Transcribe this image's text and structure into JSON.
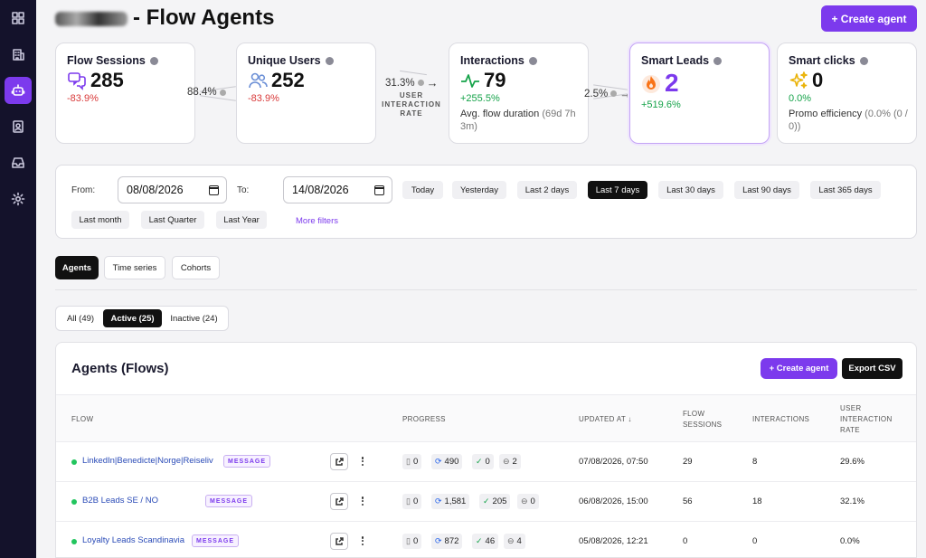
{
  "header": {
    "title": "- Flow Agents",
    "create_label": "+ Create agent"
  },
  "sidebar": {
    "icons": [
      "grid-icon",
      "building-icon",
      "bot-icon",
      "contact-icon",
      "inbox-icon",
      "gear-icon"
    ],
    "active": "bot-icon"
  },
  "kpis": {
    "flow_sessions": {
      "title": "Flow Sessions",
      "value": "285",
      "change": "-83.9%"
    },
    "unique_users": {
      "title": "Unique Users",
      "value": "252",
      "change": "-83.9%"
    },
    "interactions": {
      "title": "Interactions",
      "value": "79",
      "change": "+255.5%",
      "sub_label": "Avg. flow duration",
      "sub_value": "(69d 7h 3m)"
    },
    "smart_leads": {
      "title": "Smart Leads",
      "value": "2",
      "change": "+519.6%"
    },
    "smart_clicks": {
      "title": "Smart clicks",
      "value": "0",
      "change": "0.0%",
      "sub_label": "Promo efficiency",
      "sub_value": "(0.0% (0 / 0))"
    }
  },
  "rates": {
    "sessions_to_users": "88.4%",
    "users_to_interactions": "31.3%",
    "users_to_interactions_caption": "USER INTERACTION RATE",
    "interactions_to_leads": "2.5%"
  },
  "filters": {
    "from_label": "From:",
    "from_value": "08/08/2026",
    "to_label": "To:",
    "to_value": "14/08/2026",
    "presets": [
      "Today",
      "Yesterday",
      "Last 2 days",
      "Last 7 days",
      "Last 30 days",
      "Last 90 days",
      "Last 365 days",
      "Last month",
      "Last Quarter",
      "Last Year"
    ],
    "active_preset": "Last 7 days",
    "more_filters": "More filters"
  },
  "tabs": [
    "Agents",
    "Time series",
    "Cohorts"
  ],
  "active_tab": "Agents",
  "status_filter": {
    "all": "All (49)",
    "active": "Active (25)",
    "inactive": "Inactive (24)"
  },
  "table": {
    "title": "Agents (Flows)",
    "create_label": "+ Create agent",
    "export_label": "Export CSV",
    "columns": {
      "flow": "FLOW",
      "progress": "PROGRESS",
      "updated_at": "UPDATED AT ↓",
      "flow_sessions": "FLOW SESSIONS",
      "interactions": "INTERACTIONS",
      "user_interaction_rate": "USER INTERACTION RATE"
    },
    "rows": [
      {
        "name": "LinkedIn|Benedicte|Norge|Reiseliv",
        "badge": "MESSAGE",
        "p_draft": "0",
        "p_loop": "490",
        "p_done": "0",
        "p_skip": "2",
        "updated": "07/08/2026, 07:50",
        "sessions": "29",
        "interactions": "8",
        "rate": "29.6%"
      },
      {
        "name": "B2B Leads SE / NO",
        "badge": "MESSAGE",
        "p_draft": "0",
        "p_loop": "1,581",
        "p_done": "205",
        "p_skip": "0",
        "updated": "06/08/2026, 15:00",
        "sessions": "56",
        "interactions": "18",
        "rate": "32.1%"
      },
      {
        "name": "Loyalty Leads Scandinavia",
        "badge": "MESSAGE",
        "p_draft": "0",
        "p_loop": "872",
        "p_done": "46",
        "p_skip": "4",
        "updated": "05/08/2026, 12:21",
        "sessions": "0",
        "interactions": "0",
        "rate": "0.0%"
      }
    ]
  },
  "colors": {
    "accent": "#7c3aed",
    "sidebar": "#14122b",
    "negative": "#d93a3a",
    "positive": "#16a34a"
  }
}
